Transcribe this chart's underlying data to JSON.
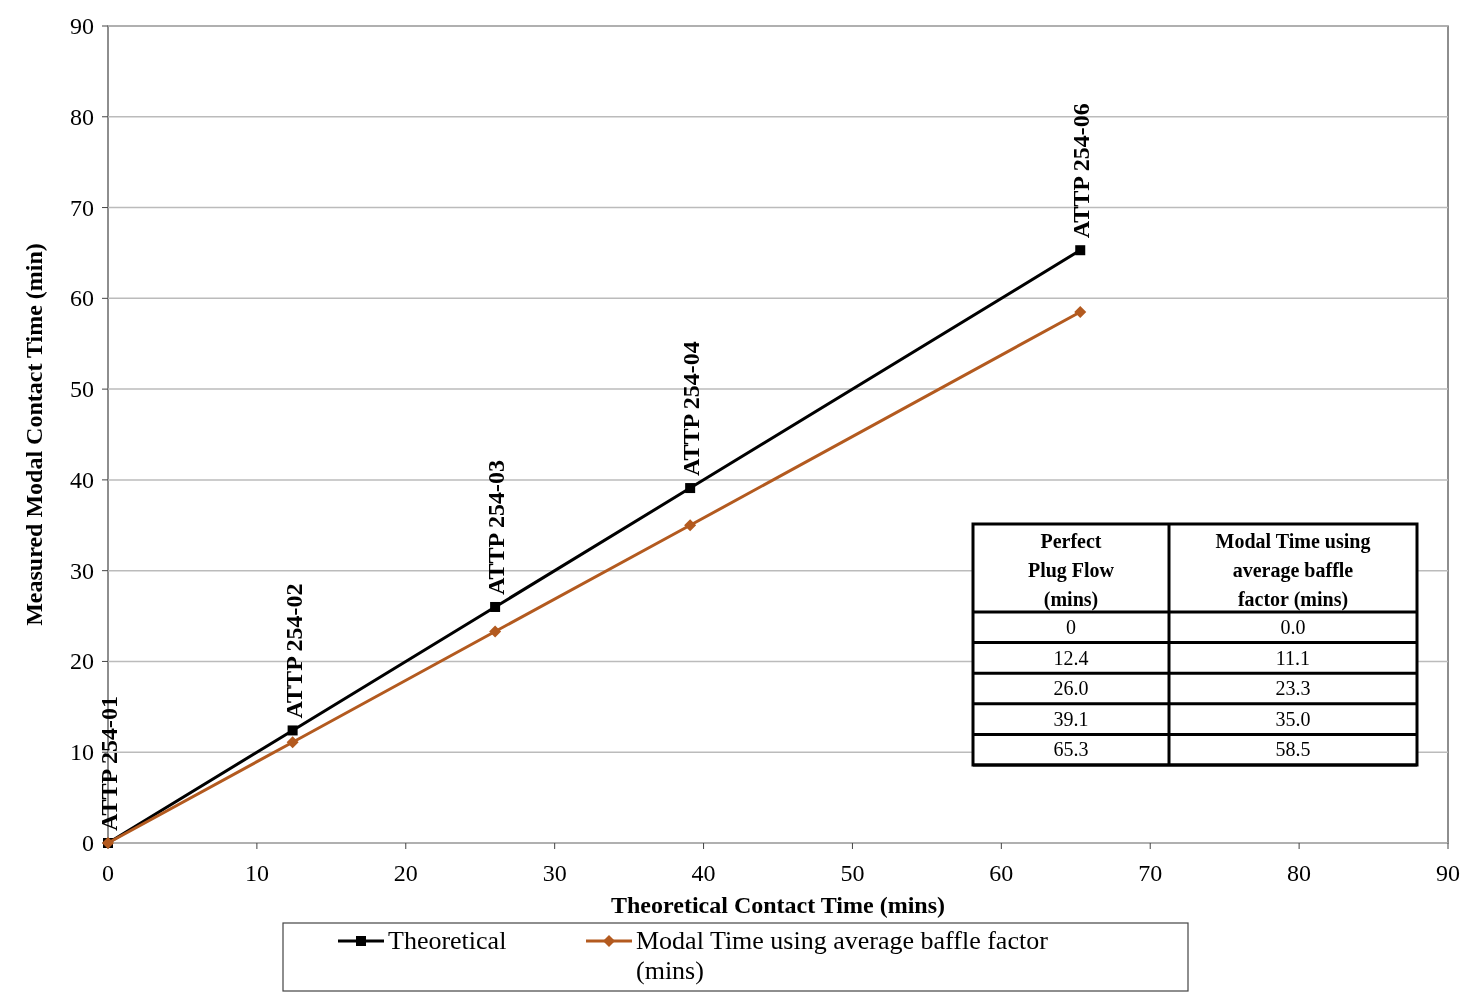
{
  "chart_data": {
    "type": "line",
    "xlabel": "Theoretical Contact Time (mins)",
    "ylabel": "Measured Modal Contact Time (min)",
    "x": [
      0,
      12.4,
      26.0,
      39.1,
      65.3
    ],
    "series": [
      {
        "name": "Theoretical",
        "color": "#000000",
        "marker": "square",
        "values": [
          0,
          12.4,
          26.0,
          39.1,
          65.3
        ]
      },
      {
        "name": "Modal Time using average baffle factor (mins)",
        "color": "#b35a1f",
        "marker": "diamond",
        "values": [
          0,
          11.1,
          23.3,
          35.0,
          58.5
        ]
      }
    ],
    "xlim": [
      0,
      90
    ],
    "xticks": [
      0,
      10,
      20,
      30,
      40,
      50,
      60,
      70,
      80,
      90
    ],
    "ylim": [
      0,
      90
    ],
    "yticks": [
      0,
      10,
      20,
      30,
      40,
      50,
      60,
      70,
      80,
      90
    ],
    "grid": "y",
    "legend": "bottom",
    "annotations": [
      {
        "text": "ATTP 254-01",
        "x": 0,
        "y": 0
      },
      {
        "text": "ATTP 254-02",
        "x": 12.4,
        "y": 12.4
      },
      {
        "text": "ATTP 254-03",
        "x": 26.0,
        "y": 26.0
      },
      {
        "text": "ATTP 254-04",
        "x": 39.1,
        "y": 39.1
      },
      {
        "text": "ATTP 254-06",
        "x": 65.3,
        "y": 65.3
      },
      "Perfect Plug Flow (mins)",
      "Modal Time using average baffle factor (mins)",
      "0",
      "0.0",
      "12.4",
      "11.1",
      "26.0",
      "23.3",
      "39.1",
      "35.0",
      "65.3",
      "58.5"
    ]
  }
}
